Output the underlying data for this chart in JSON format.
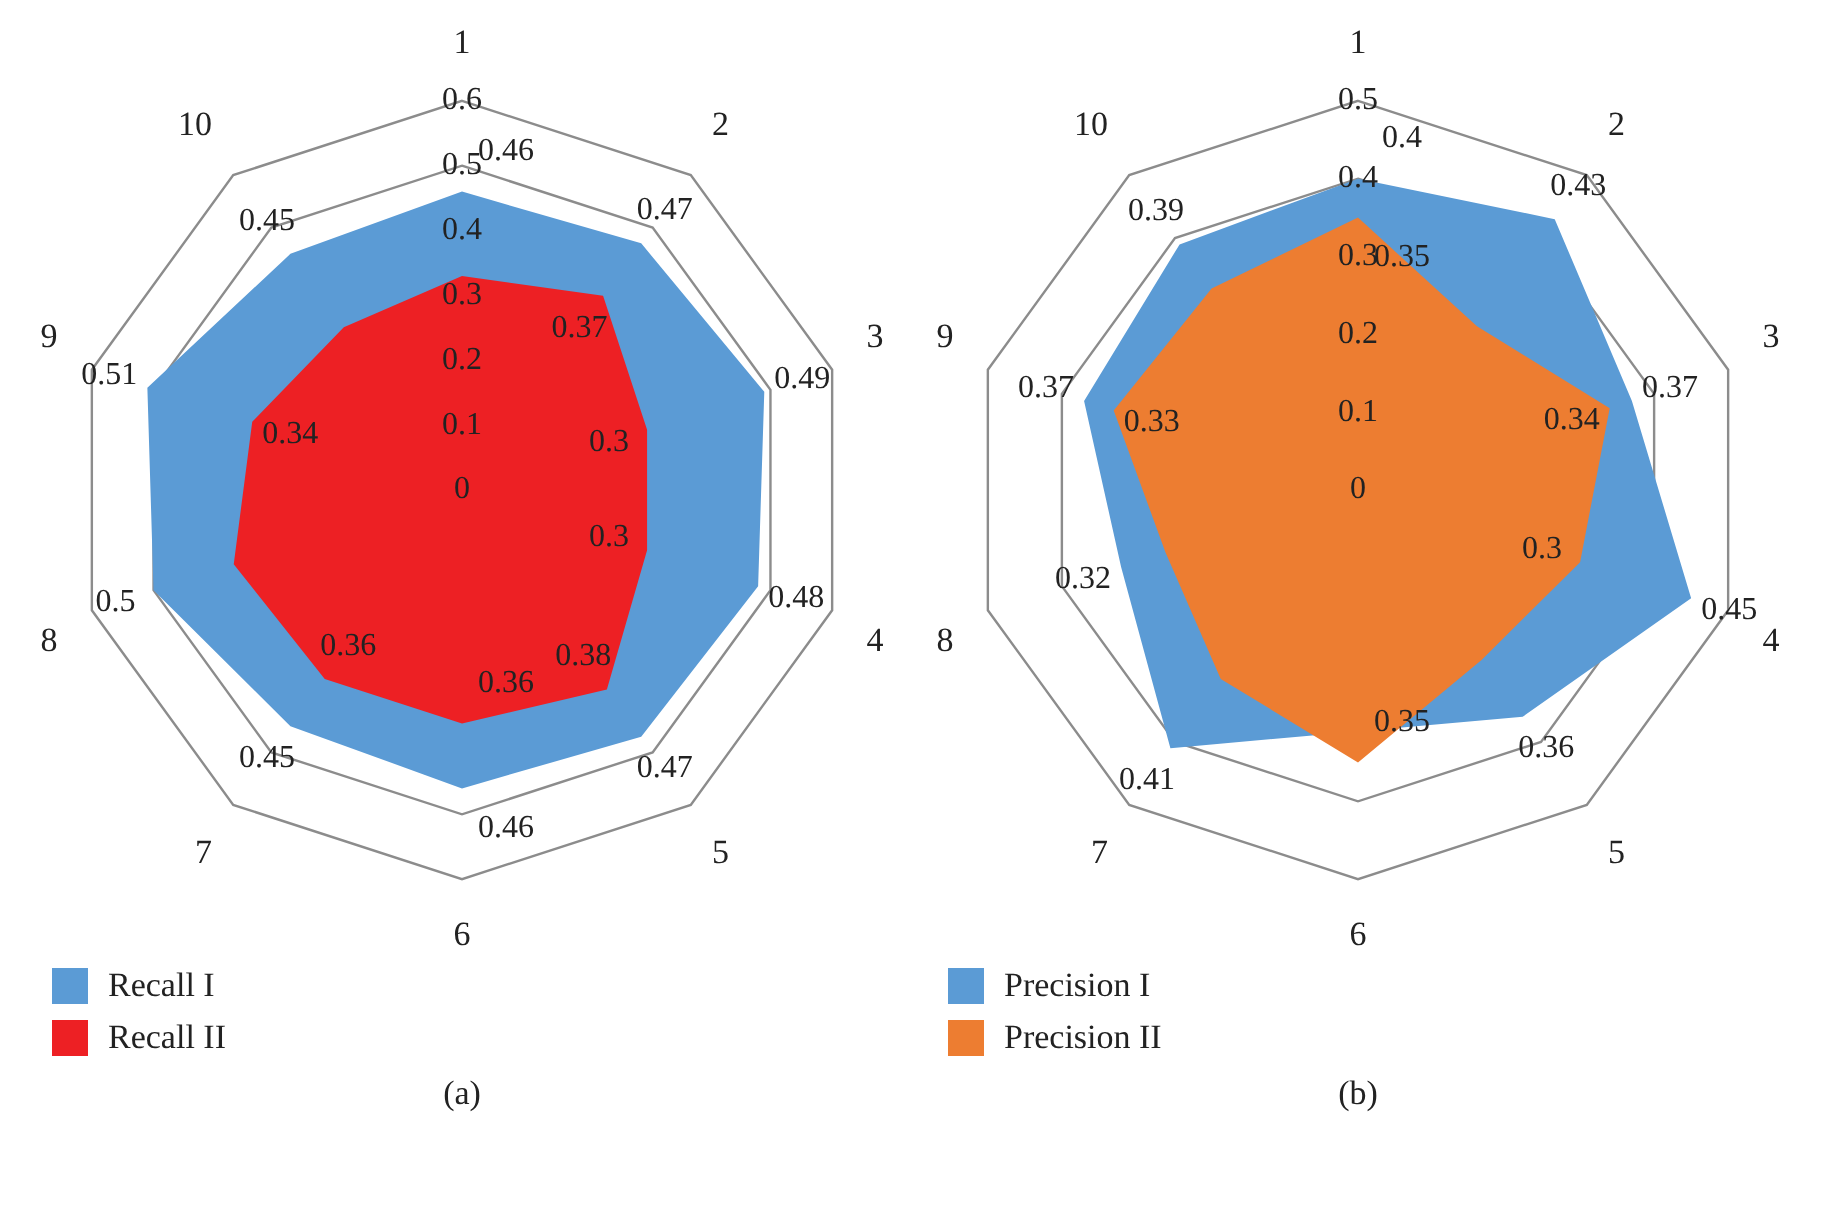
{
  "chart_data": [
    {
      "type": "radar",
      "categories": [
        "1",
        "2",
        "3",
        "4",
        "5",
        "6",
        "7",
        "8",
        "9",
        "10"
      ],
      "series": [
        {
          "name": "Recall I",
          "color": "#5b9bd5",
          "values": [
            0.46,
            0.47,
            0.49,
            0.48,
            0.47,
            0.46,
            0.45,
            0.5,
            0.51,
            0.45
          ],
          "value_labels": [
            "0.46",
            "0.47",
            "0.49",
            "0.48",
            "0.47",
            "0.46",
            "0.45",
            "0.5",
            "0.51",
            "0.45"
          ]
        },
        {
          "name": "Recall II",
          "color": "#ed2024",
          "values": [
            0.33,
            0.37,
            0.3,
            0.3,
            0.38,
            0.36,
            0.36,
            0.37,
            0.34,
            0.31
          ],
          "value_labels": [
            null,
            "0.37",
            "0.3",
            "0.3",
            "0.38",
            "0.36",
            "0.36",
            null,
            "0.34",
            null
          ]
        }
      ],
      "ylim": [
        0,
        0.6
      ],
      "yticks": [
        0,
        0.1,
        0.2,
        0.3,
        0.4,
        0.5,
        0.6
      ],
      "grid": true,
      "legend": "bottom left",
      "annotations": [
        "(a)"
      ]
    },
    {
      "type": "radar",
      "categories": [
        "1",
        "2",
        "3",
        "4",
        "5",
        "6",
        "7",
        "8",
        "9",
        "10"
      ],
      "series": [
        {
          "name": "Precision I",
          "color": "#5b9bd5",
          "values": [
            0.4,
            0.43,
            0.37,
            0.45,
            0.36,
            null,
            0.41,
            0.32,
            0.37,
            0.39
          ],
          "value_labels": [
            "0.4",
            "0.43",
            "0.37",
            "0.45",
            "0.36",
            null,
            "0.41",
            "0.32",
            "0.37",
            "0.39"
          ]
        },
        {
          "name": "Precision II",
          "color": "#ed7d31",
          "values": [
            0.35,
            0.26,
            0.34,
            0.3,
            0.27,
            0.35,
            0.3,
            0.26,
            0.33,
            0.32
          ],
          "value_labels": [
            "0.35",
            null,
            "0.34",
            "0.3",
            null,
            "0.35",
            null,
            null,
            "0.33",
            null
          ]
        }
      ],
      "ylim": [
        0,
        0.5
      ],
      "yticks": [
        0,
        0.1,
        0.2,
        0.3,
        0.4,
        0.5
      ],
      "grid": true,
      "legend": "bottom left",
      "annotations": [
        "(b)"
      ]
    }
  ]
}
